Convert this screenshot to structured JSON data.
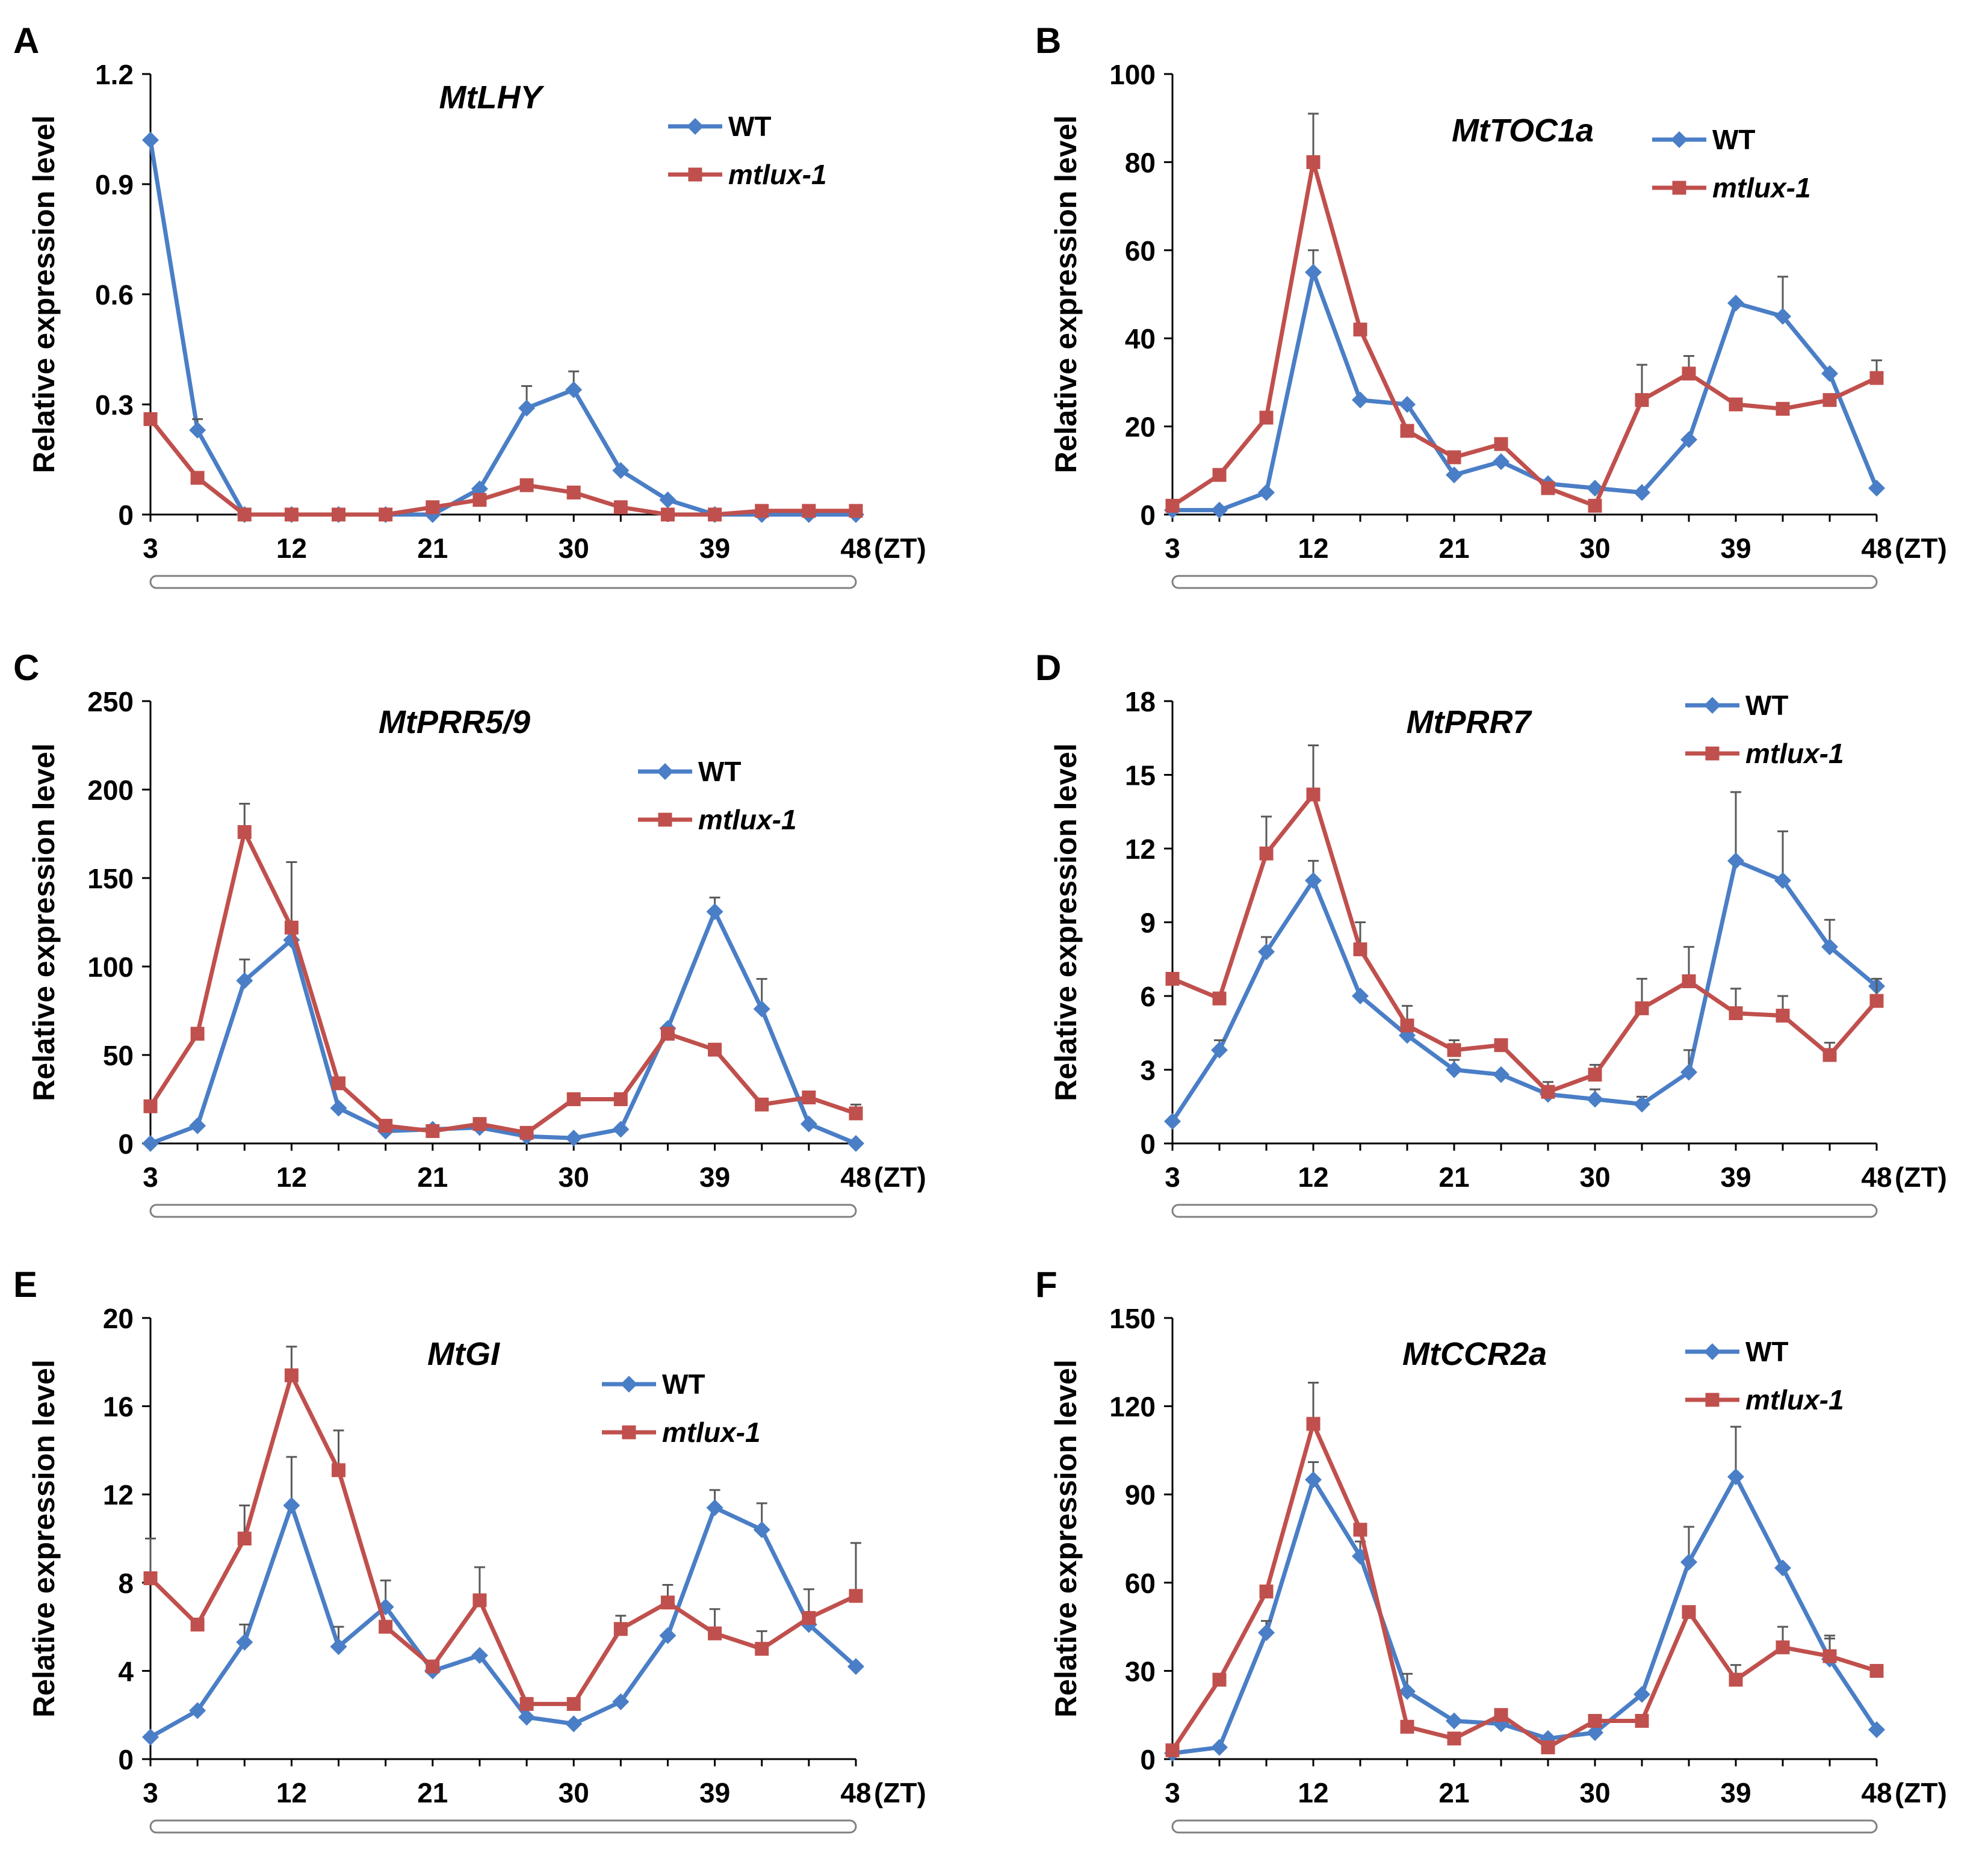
{
  "figure": {
    "x_unit_label": "(ZT)",
    "colors": {
      "wt": "#4a7ec6",
      "mutant": "#c0504d",
      "axis": "#000000"
    }
  },
  "chart_data": [
    {
      "type": "line",
      "panel_label": "A",
      "title": "MtLHY",
      "xlabel": "(ZT)",
      "ylabel": "Relative expression level",
      "x": [
        3,
        6,
        9,
        12,
        15,
        18,
        21,
        24,
        27,
        30,
        33,
        36,
        39,
        42,
        45,
        48
      ],
      "xticks": [
        "3",
        "12",
        "21",
        "30",
        "39",
        "48"
      ],
      "ylim": [
        0,
        1.2
      ],
      "yticks": [
        "0",
        "0.3",
        "0.6",
        "0.9",
        "1.2"
      ],
      "legend": "top-right",
      "series": [
        {
          "name": "WT",
          "marker": "diamond",
          "values": [
            1.02,
            0.23,
            0.0,
            0.0,
            0.0,
            0.0,
            0.0,
            0.07,
            0.29,
            0.34,
            0.12,
            0.04,
            0.0,
            0.0,
            0.0,
            0.0
          ],
          "errors": [
            0.0,
            0.03,
            0.0,
            0.0,
            0.0,
            0.0,
            0.0,
            0.0,
            0.06,
            0.05,
            0.0,
            0.0,
            0.0,
            0.0,
            0.0,
            0.0
          ]
        },
        {
          "name": "mtlux-1",
          "marker": "square",
          "values": [
            0.26,
            0.1,
            0.0,
            0.0,
            0.0,
            0.0,
            0.02,
            0.04,
            0.08,
            0.06,
            0.02,
            0.0,
            0.0,
            0.01,
            0.01,
            0.01
          ],
          "errors": [
            0.0,
            0.0,
            0.0,
            0.0,
            0.0,
            0.0,
            0.0,
            0.0,
            0.0,
            0.0,
            0.0,
            0.0,
            0.0,
            0.0,
            0.0,
            0.0
          ]
        }
      ]
    },
    {
      "type": "line",
      "panel_label": "B",
      "title": "MtTOC1a",
      "xlabel": "(ZT)",
      "ylabel": "Relative expression level",
      "x": [
        3,
        6,
        9,
        12,
        15,
        18,
        21,
        24,
        27,
        30,
        33,
        36,
        39,
        42,
        45,
        48
      ],
      "xticks": [
        "3",
        "12",
        "21",
        "30",
        "39",
        "48"
      ],
      "ylim": [
        0,
        100
      ],
      "yticks": [
        "0",
        "20",
        "40",
        "60",
        "80",
        "100"
      ],
      "legend": "top-right",
      "series": [
        {
          "name": "WT",
          "marker": "diamond",
          "values": [
            1,
            1,
            5,
            55,
            26,
            25,
            9,
            12,
            7,
            6,
            5,
            17,
            48,
            45,
            32,
            6
          ],
          "errors": [
            0,
            0,
            0,
            5,
            0,
            0,
            0,
            0,
            0,
            0,
            0,
            0,
            0,
            9,
            0,
            0
          ]
        },
        {
          "name": "mtlux-1",
          "marker": "square",
          "values": [
            2,
            9,
            22,
            80,
            42,
            19,
            13,
            16,
            6,
            2,
            26,
            32,
            25,
            24,
            26,
            31
          ],
          "errors": [
            0,
            0,
            0,
            11,
            0,
            0,
            0,
            0,
            0,
            0,
            8,
            4,
            0,
            0,
            0,
            4
          ]
        }
      ]
    },
    {
      "type": "line",
      "panel_label": "C",
      "title": "MtPRR5/9",
      "xlabel": "(ZT)",
      "ylabel": "Relative expression level",
      "x": [
        3,
        6,
        9,
        12,
        15,
        18,
        21,
        24,
        27,
        30,
        33,
        36,
        39,
        42,
        45,
        48
      ],
      "xticks": [
        "3",
        "12",
        "21",
        "30",
        "39",
        "48"
      ],
      "ylim": [
        0,
        250
      ],
      "yticks": [
        "0",
        "50",
        "100",
        "150",
        "200",
        "250"
      ],
      "legend": "top-right",
      "series": [
        {
          "name": "WT",
          "marker": "diamond",
          "values": [
            0,
            10,
            92,
            115,
            20,
            7,
            8,
            9,
            4,
            3,
            8,
            65,
            131,
            76,
            11,
            0
          ],
          "errors": [
            0,
            0,
            12,
            0,
            0,
            0,
            0,
            0,
            0,
            0,
            0,
            0,
            8,
            17,
            0,
            0
          ]
        },
        {
          "name": "mtlux-1",
          "marker": "square",
          "values": [
            21,
            62,
            176,
            122,
            34,
            10,
            7,
            11,
            6,
            25,
            25,
            62,
            53,
            22,
            26,
            17
          ],
          "errors": [
            0,
            0,
            16,
            37,
            0,
            0,
            0,
            0,
            0,
            0,
            0,
            0,
            0,
            0,
            0,
            5
          ]
        }
      ]
    },
    {
      "type": "line",
      "panel_label": "D",
      "title": "MtPRR7",
      "xlabel": "(ZT)",
      "ylabel": "Relative expression level",
      "x": [
        3,
        6,
        9,
        12,
        15,
        18,
        21,
        24,
        27,
        30,
        33,
        36,
        39,
        42,
        45,
        48
      ],
      "xticks": [
        "3",
        "12",
        "21",
        "30",
        "39",
        "48"
      ],
      "ylim": [
        0,
        18
      ],
      "yticks": [
        "0",
        "3",
        "6",
        "9",
        "12",
        "15",
        "18"
      ],
      "legend": "top-right",
      "series": [
        {
          "name": "WT",
          "marker": "diamond",
          "values": [
            0.9,
            3.8,
            7.8,
            10.7,
            6.0,
            4.4,
            3.0,
            2.8,
            2.0,
            1.8,
            1.6,
            2.9,
            11.5,
            10.7,
            8.0,
            6.4
          ],
          "errors": [
            0,
            0.4,
            0.6,
            0.8,
            0,
            0.5,
            0.4,
            0,
            0.5,
            0.4,
            0.3,
            0.9,
            2.8,
            2.0,
            1.1,
            0
          ]
        },
        {
          "name": "mtlux-1",
          "marker": "square",
          "values": [
            6.7,
            5.9,
            11.8,
            14.2,
            7.9,
            4.8,
            3.8,
            4.0,
            2.1,
            2.8,
            5.5,
            6.6,
            5.3,
            5.2,
            3.6,
            5.8
          ],
          "errors": [
            0,
            0,
            1.5,
            2.0,
            1.1,
            0.8,
            0.4,
            0,
            0,
            0.4,
            1.2,
            1.4,
            1.0,
            0.8,
            0.5,
            0.9
          ]
        }
      ]
    },
    {
      "type": "line",
      "panel_label": "E",
      "title": "MtGI",
      "xlabel": "(ZT)",
      "ylabel": "Relative expression level",
      "x": [
        3,
        6,
        9,
        12,
        15,
        18,
        21,
        24,
        27,
        30,
        33,
        36,
        39,
        42,
        45,
        48
      ],
      "xticks": [
        "3",
        "12",
        "21",
        "30",
        "39",
        "48"
      ],
      "ylim": [
        0,
        20
      ],
      "yticks": [
        "0",
        "4",
        "8",
        "12",
        "16",
        "20"
      ],
      "legend": "top-right",
      "series": [
        {
          "name": "WT",
          "marker": "diamond",
          "values": [
            1.0,
            2.2,
            5.3,
            11.5,
            5.1,
            6.9,
            4.0,
            4.7,
            1.9,
            1.6,
            2.6,
            5.6,
            11.4,
            10.4,
            6.1,
            4.2
          ],
          "errors": [
            0,
            0,
            0.8,
            2.2,
            0.9,
            1.2,
            0,
            0,
            0,
            0,
            0,
            0,
            0.8,
            1.2,
            0,
            0
          ]
        },
        {
          "name": "mtlux-1",
          "marker": "square",
          "values": [
            8.2,
            6.1,
            10.0,
            17.4,
            13.1,
            6.0,
            4.2,
            7.2,
            2.5,
            2.5,
            5.9,
            7.1,
            5.7,
            5.0,
            6.4,
            7.4
          ],
          "errors": [
            1.8,
            0,
            1.5,
            1.3,
            1.8,
            0,
            0,
            1.5,
            0,
            0,
            0.6,
            0.8,
            1.1,
            0.8,
            1.3,
            2.4
          ]
        }
      ]
    },
    {
      "type": "line",
      "panel_label": "F",
      "title": "MtCCR2a",
      "xlabel": "(ZT)",
      "ylabel": "Relative expression level",
      "x": [
        3,
        6,
        9,
        12,
        15,
        18,
        21,
        24,
        27,
        30,
        33,
        36,
        39,
        42,
        45,
        48
      ],
      "xticks": [
        "3",
        "12",
        "21",
        "30",
        "39",
        "48"
      ],
      "ylim": [
        0,
        150
      ],
      "yticks": [
        "0",
        "30",
        "60",
        "90",
        "120",
        "150"
      ],
      "legend": "top-right",
      "series": [
        {
          "name": "WT",
          "marker": "diamond",
          "values": [
            2,
            4,
            43,
            95,
            69,
            23,
            13,
            12,
            7,
            9,
            22,
            67,
            96,
            65,
            34,
            10
          ],
          "errors": [
            0,
            0,
            4,
            6,
            5,
            6,
            0,
            0,
            0,
            0,
            0,
            12,
            17,
            0,
            8,
            0
          ]
        },
        {
          "name": "mtlux-1",
          "marker": "square",
          "values": [
            3,
            27,
            57,
            114,
            78,
            11,
            7,
            15,
            4,
            13,
            13,
            50,
            27,
            38,
            35,
            30
          ],
          "errors": [
            0,
            0,
            0,
            14,
            0,
            0,
            0,
            0,
            0,
            0,
            0,
            0,
            5,
            7,
            6,
            0
          ]
        }
      ]
    }
  ]
}
